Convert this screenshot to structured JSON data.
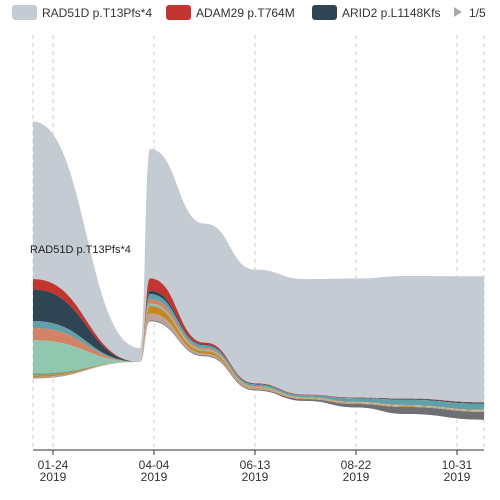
{
  "legend": {
    "page": "1/5",
    "items": [
      {
        "name": "RAD51D p.T13Pfs*4",
        "color": "#c5cbd2"
      },
      {
        "name": "ADAM29 p.T764M",
        "color": "#c23531"
      },
      {
        "name": "ARID2 p.L1148Kfs",
        "color": "#2f4554"
      }
    ]
  },
  "chart_data": {
    "type": "area",
    "subtype": "themeRiver",
    "x_ticks": [
      {
        "date": "01-24",
        "year": "2019"
      },
      {
        "date": "04-04",
        "year": "2019"
      },
      {
        "date": "06-13",
        "year": "2019"
      },
      {
        "date": "08-22",
        "year": "2019"
      },
      {
        "date": "10-31",
        "year": "2019"
      }
    ],
    "series_label_text": "RAD51D p.T13Pfs*4",
    "series": [
      {
        "name": "RAD51D p.T13Pfs*4",
        "color": "#c5cbd2",
        "values": [
          90,
          8,
          74,
          68,
          65,
          66,
          68,
          70,
          72
        ]
      },
      {
        "name": "ADAM29 p.T764M",
        "color": "#c23531",
        "values": [
          6,
          0,
          7,
          1,
          0.3,
          0.2,
          0.2,
          0.2,
          0.2
        ]
      },
      {
        "name": "ARID2 p.L1148Kfs",
        "color": "#2f4554",
        "values": [
          18,
          0,
          2,
          0.5,
          0.3,
          0.2,
          0.3,
          0.5,
          0.6
        ]
      },
      {
        "name": "",
        "color": "#61a0a8",
        "values": [
          4,
          0,
          3,
          1.5,
          1,
          1,
          2,
          3,
          3.5
        ]
      },
      {
        "name": "",
        "color": "#d48265",
        "values": [
          7,
          0,
          2.5,
          1,
          0.5,
          0.3,
          0.3,
          0.3,
          0.3
        ]
      },
      {
        "name": "",
        "color": "#91c7ae",
        "values": [
          19,
          0,
          1,
          0.5,
          0.3,
          0.2,
          0.2,
          0.2,
          0.2
        ]
      },
      {
        "name": "",
        "color": "#749f83",
        "values": [
          1,
          0,
          0.5,
          0.3,
          0.2,
          0.1,
          0.1,
          0.1,
          0.1
        ]
      },
      {
        "name": "",
        "color": "#ca8622",
        "values": [
          1,
          0,
          4,
          1.5,
          0.5,
          0.3,
          0.3,
          0.3,
          0.3
        ]
      },
      {
        "name": "",
        "color": "#bda29a",
        "values": [
          0.5,
          0,
          4,
          1,
          0.5,
          0.3,
          0.3,
          0.3,
          0.3
        ]
      },
      {
        "name": "",
        "color": "#6e7074",
        "values": [
          0.3,
          0,
          0.5,
          0.5,
          0.5,
          1,
          2,
          4,
          4.5
        ]
      }
    ]
  }
}
